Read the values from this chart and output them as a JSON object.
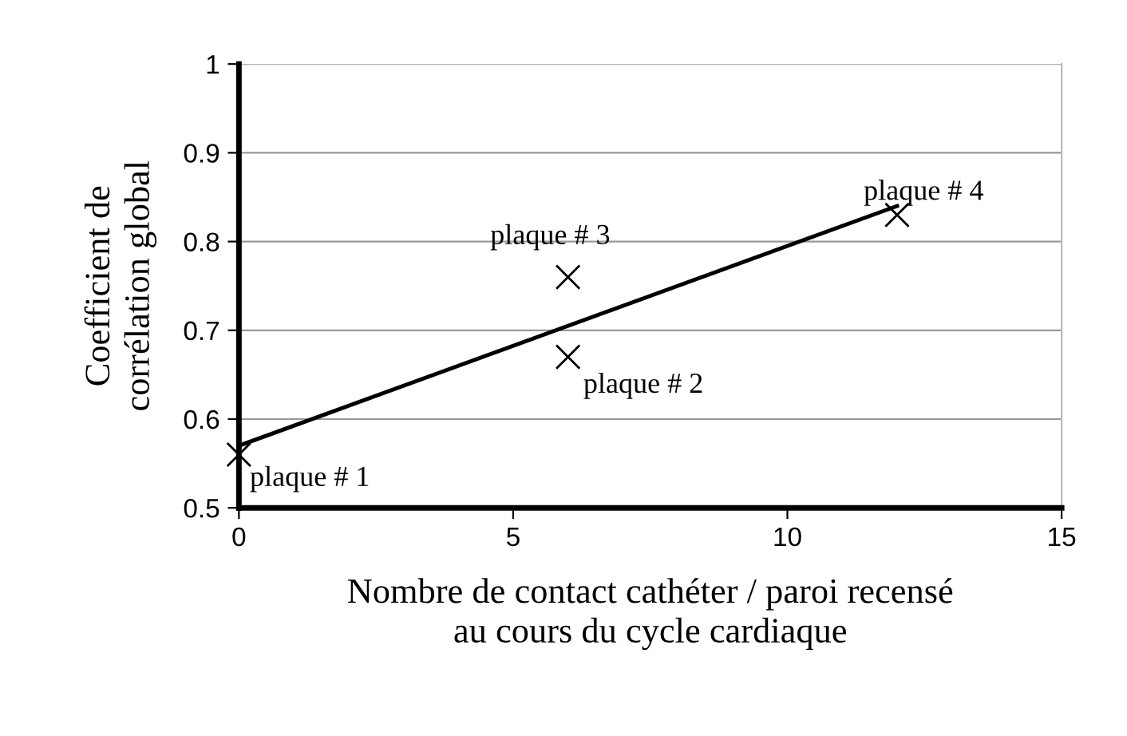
{
  "chart_data": {
    "type": "scatter",
    "xlabel": "Nombre de contact cathéter / paroi recensé\nau cours du cycle cardiaque",
    "ylabel": "Coefficient de\ncorrélation global",
    "series": [
      {
        "color": "#000000",
        "marker": "cross",
        "x": [
          0,
          6,
          6,
          12
        ],
        "values": [
          0.56,
          0.67,
          0.76,
          0.83
        ]
      },
      {
        "type": "line",
        "color": "#000000",
        "marker": "none",
        "x": [
          0,
          12
        ],
        "values": [
          0.57,
          0.84
        ]
      }
    ],
    "annotations": [
      {
        "text": "plaque # 1",
        "x": 0,
        "y": 0.56
      },
      {
        "text": "plaque # 2",
        "x": 6,
        "y": 0.67
      },
      {
        "text": "plaque # 3",
        "x": 6,
        "y": 0.76
      },
      {
        "text": "plaque # 4",
        "x": 12,
        "y": 0.83
      }
    ],
    "xlim": [
      0,
      15
    ],
    "xticks": [
      0,
      5,
      10,
      15
    ],
    "ylim": [
      0.5,
      1
    ],
    "yticks": [
      0.5,
      0.6,
      0.7,
      0.8,
      0.9,
      1
    ],
    "grid": "y",
    "legend": false
  }
}
